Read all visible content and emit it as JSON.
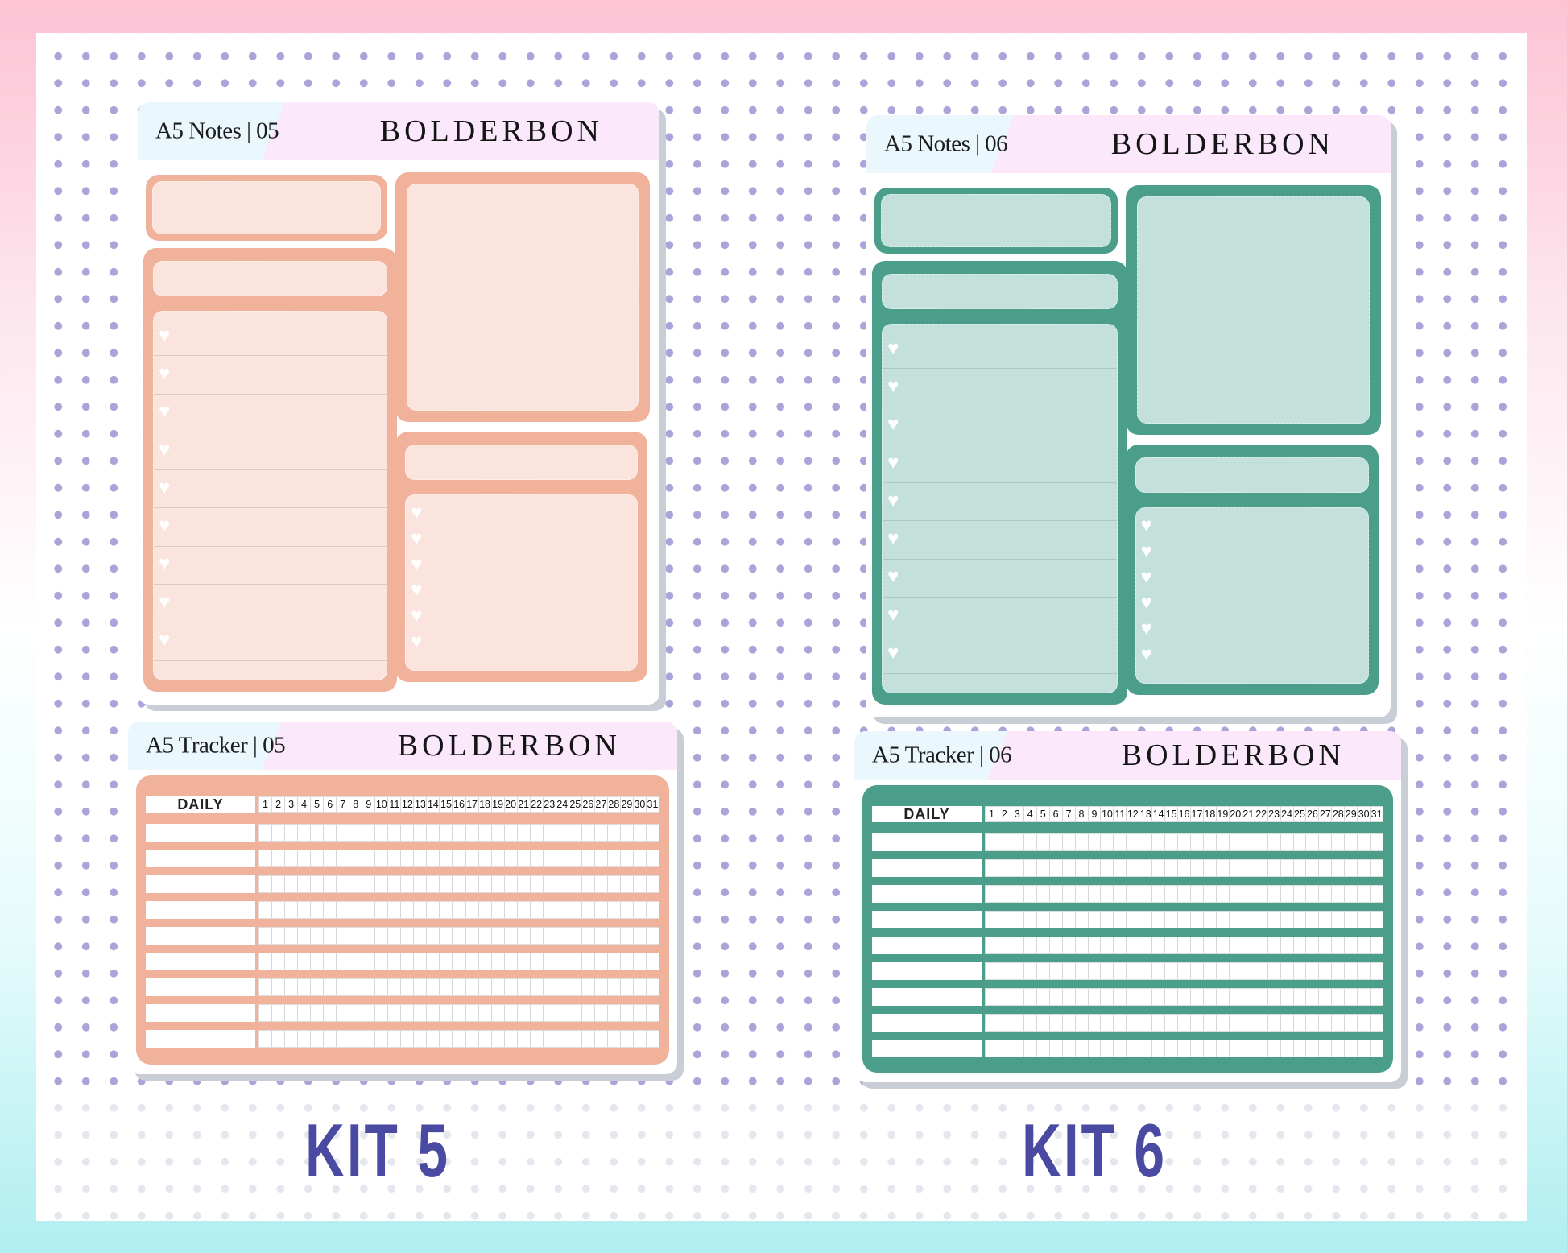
{
  "kits": [
    {
      "label": "KIT 5",
      "colors": {
        "dark": "#f0b29b",
        "light": "#fbe4dd"
      },
      "notes": {
        "title": "A5 Notes | 05",
        "brand": "BOLDERBON",
        "left_list_items": 9,
        "right_list_items": 6,
        "item_icon": "heart-icon"
      },
      "tracker": {
        "title": "A5 Tracker | 05",
        "brand": "BOLDERBON",
        "header_label": "DAILY",
        "rows": 9,
        "days": [
          "1",
          "2",
          "3",
          "4",
          "5",
          "6",
          "7",
          "8",
          "9",
          "10",
          "11",
          "12",
          "13",
          "14",
          "15",
          "16",
          "17",
          "18",
          "19",
          "20",
          "21",
          "22",
          "23",
          "24",
          "25",
          "26",
          "27",
          "28",
          "29",
          "30",
          "31"
        ]
      }
    },
    {
      "label": "KIT 6",
      "colors": {
        "dark": "#4a9e8a",
        "light": "#c3e1da"
      },
      "notes": {
        "title": "A5 Notes | 06",
        "brand": "BOLDERBON",
        "left_list_items": 9,
        "right_list_items": 6,
        "item_icon": "heart-icon"
      },
      "tracker": {
        "title": "A5 Tracker | 06",
        "brand": "BOLDERBON",
        "header_label": "DAILY",
        "rows": 9,
        "days": [
          "1",
          "2",
          "3",
          "4",
          "5",
          "6",
          "7",
          "8",
          "9",
          "10",
          "11",
          "12",
          "13",
          "14",
          "15",
          "16",
          "17",
          "18",
          "19",
          "20",
          "21",
          "22",
          "23",
          "24",
          "25",
          "26",
          "27",
          "28",
          "29",
          "30",
          "31"
        ]
      }
    }
  ],
  "background": {
    "dot_color": "#aaa4d8",
    "top_color": "#fdc3d5",
    "bottom_color": "#b0eef0",
    "label_color": "#4b4aa2"
  }
}
